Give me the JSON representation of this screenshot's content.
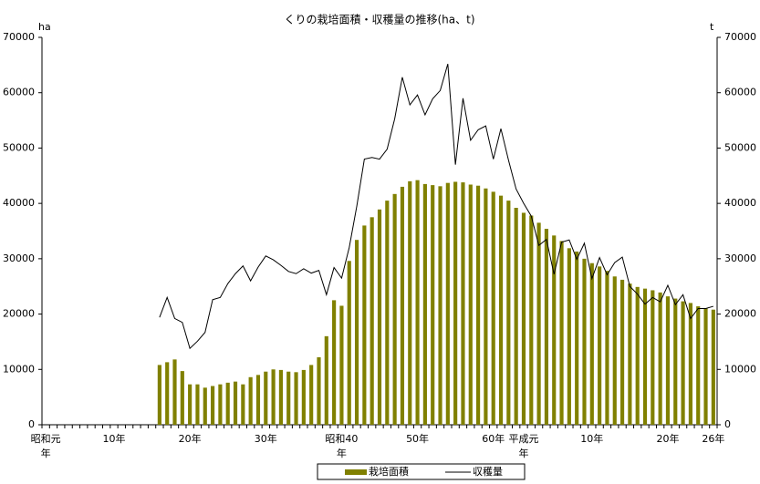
{
  "chart_data": {
    "type": "bar_line",
    "title": "くりの栽培面積・収穫量の推移(ha、t)",
    "y_label": "ha",
    "y2_label": "t",
    "categories": [
      "昭和元\n年",
      null,
      null,
      null,
      null,
      null,
      null,
      null,
      null,
      "10年",
      null,
      null,
      null,
      null,
      null,
      null,
      null,
      null,
      null,
      "20年",
      null,
      null,
      null,
      null,
      null,
      null,
      null,
      null,
      null,
      "30年",
      null,
      null,
      null,
      null,
      null,
      null,
      null,
      null,
      null,
      "昭和40\n年",
      null,
      null,
      null,
      null,
      null,
      null,
      null,
      null,
      null,
      "50年",
      null,
      null,
      null,
      null,
      null,
      null,
      null,
      null,
      null,
      "60年",
      null,
      null,
      null,
      "平成元\n年",
      null,
      null,
      null,
      null,
      null,
      null,
      null,
      null,
      "10年",
      null,
      null,
      null,
      null,
      null,
      null,
      null,
      null,
      null,
      "20年",
      null,
      null,
      null,
      null,
      null,
      "26年"
    ],
    "series": [
      {
        "name": "栽培面積",
        "type": "bar",
        "color": "#808000",
        "values": [
          null,
          null,
          null,
          null,
          null,
          null,
          null,
          null,
          null,
          null,
          null,
          null,
          null,
          null,
          null,
          10800,
          11300,
          11800,
          9700,
          7300,
          7300,
          6700,
          7000,
          7300,
          7600,
          7800,
          7300,
          8600,
          9000,
          9600,
          10000,
          9900,
          9600,
          9500,
          9900,
          10800,
          12200,
          16000,
          22500,
          21500,
          29600,
          33400,
          36000,
          37500,
          38900,
          40500,
          41700,
          43000,
          44000,
          44200,
          43500,
          43300,
          43100,
          43700,
          43900,
          43800,
          43400,
          43200,
          42700,
          42100,
          41400,
          40500,
          39200,
          38300,
          37800,
          36500,
          35400,
          34200,
          33200,
          31900,
          31300,
          30000,
          29200,
          28600,
          27800,
          26800,
          26200,
          25500,
          24900,
          24600,
          24300,
          23900,
          23200,
          22800,
          22300,
          22000,
          21400,
          21000,
          20800
        ]
      },
      {
        "name": "収穫量",
        "type": "line",
        "color": "#000000",
        "axis": "y2",
        "values": [
          null,
          null,
          null,
          null,
          null,
          null,
          null,
          null,
          null,
          null,
          null,
          null,
          null,
          null,
          null,
          19400,
          23000,
          19200,
          18500,
          13800,
          15100,
          16700,
          22600,
          23000,
          25500,
          27300,
          28700,
          26000,
          28500,
          30500,
          29800,
          28800,
          27700,
          27300,
          28200,
          27400,
          27900,
          23500,
          28400,
          26500,
          32000,
          39500,
          48000,
          48300,
          48000,
          49800,
          55300,
          62800,
          57800,
          59600,
          56000,
          58900,
          60400,
          65200,
          47000,
          59000,
          51400,
          53300,
          54000,
          48000,
          53500,
          47800,
          42600,
          40000,
          37700,
          32400,
          33500,
          27200,
          33000,
          33400,
          29900,
          32800,
          26400,
          30200,
          27100,
          29300,
          30300,
          25000,
          23600,
          21800,
          23000,
          22200,
          25200,
          21700,
          23500,
          19200,
          21000,
          21000,
          21400
        ]
      }
    ],
    "ylim": [
      0,
      70000
    ],
    "yticks": [
      0,
      10000,
      20000,
      30000,
      40000,
      50000,
      60000,
      70000
    ],
    "y2lim": [
      0,
      70000
    ],
    "y2ticks": [
      0,
      10000,
      20000,
      30000,
      40000,
      50000,
      60000,
      70000
    ],
    "grid": false,
    "legend": "bottom"
  }
}
